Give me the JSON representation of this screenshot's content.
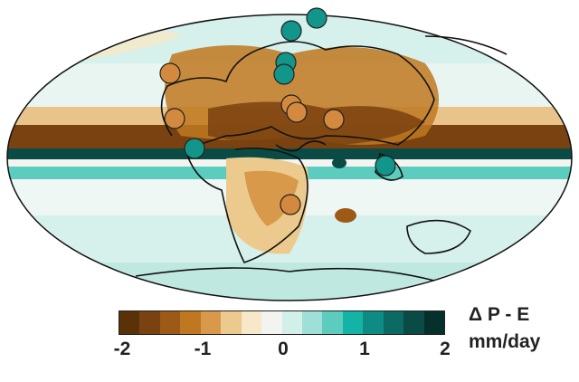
{
  "colorbar": {
    "label": "Δ P - E",
    "units": "mm/day",
    "ticks": [
      "-2",
      "-1",
      "0",
      "1",
      "2"
    ],
    "range": [
      -2,
      2
    ],
    "colors": [
      "#5a3208",
      "#7a4210",
      "#9c5a16",
      "#c07820",
      "#d89a4a",
      "#ecc98c",
      "#f6e8c8",
      "#f3f3f0",
      "#d2efe9",
      "#9fe0d6",
      "#5cccbf",
      "#13b3a6",
      "#0e8c83",
      "#0b6a63",
      "#0a4b45",
      "#06302c"
    ]
  },
  "map": {
    "ocean_color": "#d6f0ec",
    "drier_marker_color": "#d38a3f",
    "wetter_marker_color": "#12958a",
    "markers": [
      {
        "type": "drier"
      },
      {
        "type": "drier"
      },
      {
        "type": "drier"
      },
      {
        "type": "drier"
      },
      {
        "type": "drier"
      },
      {
        "type": "drier"
      },
      {
        "type": "wetter"
      },
      {
        "type": "wetter"
      },
      {
        "type": "wetter"
      },
      {
        "type": "wetter"
      },
      {
        "type": "wetter"
      },
      {
        "type": "wetter"
      }
    ]
  }
}
